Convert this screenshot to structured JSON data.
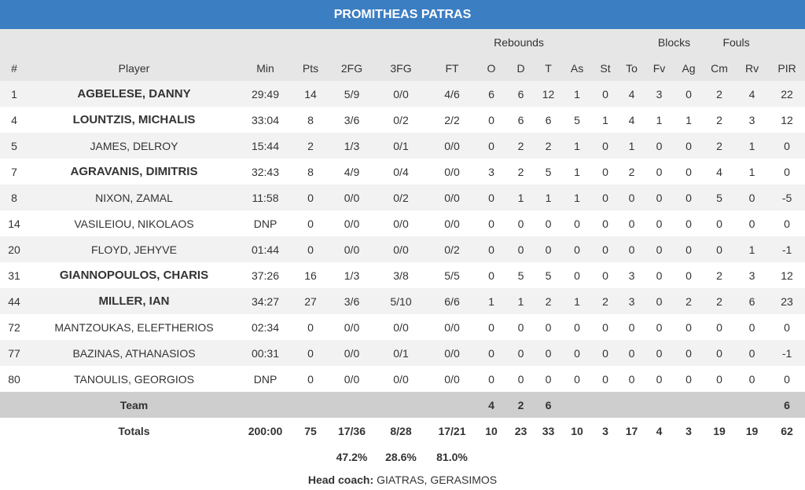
{
  "title": "PROMITHEAS PATRAS",
  "group_headers": [
    "Rebounds",
    "Blocks",
    "Fouls"
  ],
  "columns": [
    "#",
    "Player",
    "Min",
    "Pts",
    "2FG",
    "3FG",
    "FT",
    "O",
    "D",
    "T",
    "As",
    "St",
    "To",
    "Fv",
    "Ag",
    "Cm",
    "Rv",
    "PIR"
  ],
  "rows": [
    {
      "starter": true,
      "cells": [
        1,
        "AGBELESE, DANNY",
        "29:49",
        14,
        "5/9",
        "0/0",
        "4/6",
        6,
        6,
        12,
        1,
        0,
        4,
        3,
        0,
        2,
        4,
        22
      ]
    },
    {
      "starter": true,
      "cells": [
        4,
        "LOUNTZIS, MICHALIS",
        "33:04",
        8,
        "3/6",
        "0/2",
        "2/2",
        0,
        6,
        6,
        5,
        1,
        4,
        1,
        1,
        2,
        3,
        12
      ]
    },
    {
      "starter": false,
      "cells": [
        5,
        "JAMES, DELROY",
        "15:44",
        2,
        "1/3",
        "0/1",
        "0/0",
        0,
        2,
        2,
        1,
        0,
        1,
        0,
        0,
        2,
        1,
        0
      ]
    },
    {
      "starter": true,
      "cells": [
        7,
        "AGRAVANIS, DIMITRIS",
        "32:43",
        8,
        "4/9",
        "0/4",
        "0/0",
        3,
        2,
        5,
        1,
        0,
        2,
        0,
        0,
        4,
        1,
        0
      ]
    },
    {
      "starter": false,
      "cells": [
        8,
        "NIXON, ZAMAL",
        "11:58",
        0,
        "0/0",
        "0/2",
        "0/0",
        0,
        1,
        1,
        1,
        0,
        0,
        0,
        0,
        5,
        0,
        -5
      ]
    },
    {
      "starter": false,
      "cells": [
        14,
        "VASILEIOU, NIKOLAOS",
        "DNP",
        0,
        "0/0",
        "0/0",
        "0/0",
        0,
        0,
        0,
        0,
        0,
        0,
        0,
        0,
        0,
        0,
        0
      ]
    },
    {
      "starter": false,
      "cells": [
        20,
        "FLOYD, JEHYVE",
        "01:44",
        0,
        "0/0",
        "0/0",
        "0/2",
        0,
        0,
        0,
        0,
        0,
        0,
        0,
        0,
        0,
        1,
        -1
      ]
    },
    {
      "starter": true,
      "cells": [
        31,
        "GIANNOPOULOS, CHARIS",
        "37:26",
        16,
        "1/3",
        "3/8",
        "5/5",
        0,
        5,
        5,
        0,
        0,
        3,
        0,
        0,
        2,
        3,
        12
      ]
    },
    {
      "starter": true,
      "cells": [
        44,
        "MILLER, IAN",
        "34:27",
        27,
        "3/6",
        "5/10",
        "6/6",
        1,
        1,
        2,
        1,
        2,
        3,
        0,
        2,
        2,
        6,
        23
      ]
    },
    {
      "starter": false,
      "cells": [
        72,
        "MANTZOUKAS, ELEFTHERIOS",
        "02:34",
        0,
        "0/0",
        "0/0",
        "0/0",
        0,
        0,
        0,
        0,
        0,
        0,
        0,
        0,
        0,
        0,
        0
      ]
    },
    {
      "starter": false,
      "cells": [
        77,
        "BAZINAS, ATHANASIOS",
        "00:31",
        0,
        "0/0",
        "0/1",
        "0/0",
        0,
        0,
        0,
        0,
        0,
        0,
        0,
        0,
        0,
        0,
        -1
      ]
    },
    {
      "starter": false,
      "cells": [
        80,
        "TANOULIS, GEORGIOS",
        "DNP",
        0,
        "0/0",
        "0/0",
        "0/0",
        0,
        0,
        0,
        0,
        0,
        0,
        0,
        0,
        0,
        0,
        0
      ]
    }
  ],
  "team": [
    null,
    "Team",
    null,
    null,
    null,
    null,
    null,
    4,
    2,
    6,
    null,
    null,
    null,
    null,
    null,
    null,
    null,
    6
  ],
  "totals": [
    null,
    "Totals",
    "200:00",
    75,
    "17/36",
    "8/28",
    "17/21",
    10,
    23,
    33,
    10,
    3,
    17,
    4,
    3,
    19,
    19,
    62
  ],
  "percentages": [
    null,
    null,
    null,
    null,
    "47.2%",
    "28.6%",
    "81.0%",
    null,
    null,
    null,
    null,
    null,
    null,
    null,
    null,
    null,
    null,
    null
  ],
  "head_coach": {
    "label": "Head coach:",
    "name": "GIATRAS, GERASIMOS"
  }
}
